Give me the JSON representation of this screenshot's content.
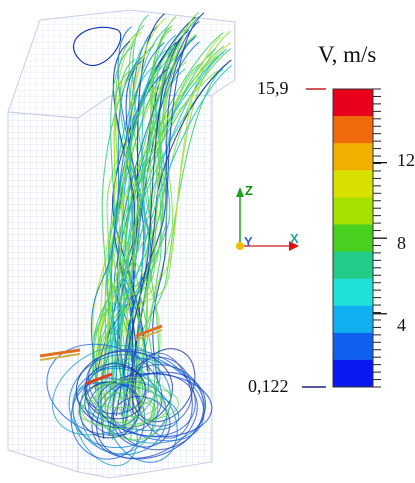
{
  "legend": {
    "title": "V, m/s",
    "max_label": "15,9",
    "min_label": "0,122",
    "tick_labels": [
      "12",
      "8",
      "4"
    ],
    "tick_values": [
      12,
      8,
      4
    ],
    "max": 15.9,
    "min": 0.122,
    "band_colors": [
      "#e8001a",
      "#f06a0c",
      "#f0b000",
      "#d8e000",
      "#a8e000",
      "#48d020",
      "#22cc88",
      "#20e0d8",
      "#10b0f0",
      "#1060f0",
      "#0818f0"
    ]
  },
  "axes_triad": {
    "z": "Z",
    "y": "Y",
    "x": "X"
  },
  "icons": {
    "mesh": "mesh-box",
    "streamlines": "streamlines",
    "triad": "axis-triad"
  }
}
